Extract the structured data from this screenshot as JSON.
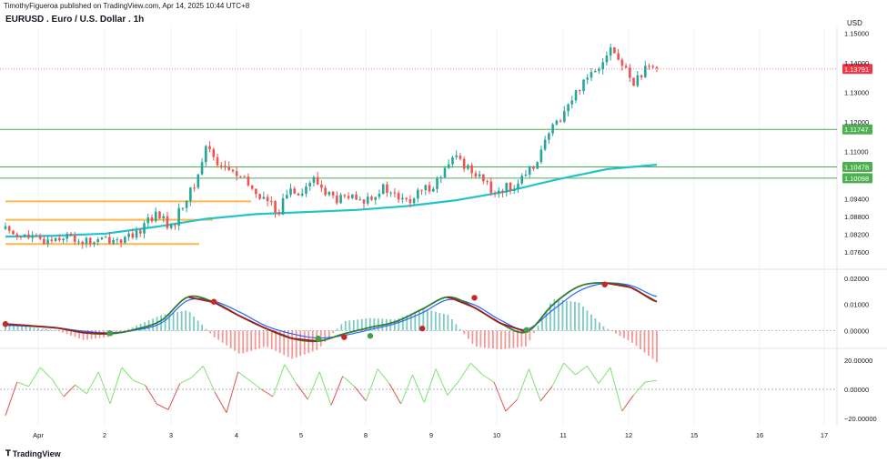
{
  "header": {
    "publisher_line": "TimothyFigueroa published on TradingView.com, Apr 14, 2025 10:44 UTC+8",
    "symbol_title": "EURUSD . Euro / U.S. Dollar . 1h",
    "currency": "USD",
    "brand": "TradingView"
  },
  "colors": {
    "up": "#26a69a",
    "down": "#ef5350",
    "ma": "#22c3c9",
    "hline": "#4caf50",
    "support": "#ffb74d",
    "last_price": "#f23645",
    "macd_fast": "#2e7d32",
    "macd_signal": "#2962ff",
    "osc_up": "#7ee36f",
    "osc_down": "#e05050"
  },
  "chart_data": [
    {
      "type": "candlestick",
      "title": "EURUSD . Euro / U.S. Dollar . 1h",
      "y_unit": "USD",
      "ylim": [
        1.072,
        1.152
      ],
      "x_ticks": [
        "Apr",
        "2",
        "3",
        "4",
        "5",
        "8",
        "9",
        "10",
        "11",
        "12",
        "15",
        "16",
        "17"
      ],
      "y_ticks": [
        "1.15000",
        "1.14000",
        "1.13000",
        "1.12000",
        "1.11000",
        "1.09400",
        "1.08800",
        "1.08200",
        "1.07600"
      ],
      "last_price": {
        "value": 1.13791,
        "label": "1.13791"
      },
      "horizontal_levels": [
        {
          "value": 1.11747,
          "label": "1.11747"
        },
        {
          "value": 1.10478,
          "label": "1.10478"
        },
        {
          "value": 1.10098,
          "label": "1.10098"
        }
      ],
      "support_levels": [
        1.0931,
        1.0869,
        1.0787
      ],
      "close_path": [
        1.0838,
        1.0822,
        1.0808,
        1.0795,
        1.0808,
        1.0815,
        1.0802,
        1.0792,
        1.0798,
        1.0805,
        1.0802,
        1.0812,
        1.0875,
        1.0885,
        1.0835,
        1.0925,
        1.0985,
        1.1125,
        1.1058,
        1.1035,
        1.1005,
        1.0965,
        1.0935,
        1.0895,
        1.0975,
        1.0965,
        1.1005,
        1.0965,
        1.0935,
        1.0945,
        1.0925,
        1.0955,
        1.0975,
        1.0945,
        1.0925,
        1.0962,
        1.0985,
        1.1025,
        1.1085,
        1.1045,
        1.1025,
        1.0962,
        1.0975,
        1.0985,
        1.1015,
        1.1085,
        1.1165,
        1.1225,
        1.1285,
        1.1355,
        1.1385,
        1.1455,
        1.1395,
        1.1335,
        1.1372,
        1.1379
      ],
      "moving_average": [
        1.0812,
        1.0815,
        1.0822,
        1.0845,
        1.0872,
        1.0888,
        1.0895,
        1.0902,
        1.0915,
        1.0935,
        1.0965,
        1.1005,
        1.104,
        1.1055
      ]
    },
    {
      "type": "line",
      "name": "MACD",
      "ylim": [
        -0.004,
        0.022
      ],
      "y_ticks": [
        "0.02000",
        "0.01000",
        "0.00000"
      ],
      "series": [
        {
          "values": [
            0.0025,
            0.0018,
            0.001,
            -0.0008,
            -0.0012,
            0.0005,
            0.004,
            0.0128,
            0.0108,
            0.0055,
            0.0008,
            -0.003,
            -0.004,
            -0.0012,
            0.0012,
            0.0035,
            0.0082,
            0.0128,
            0.0088,
            0.0028,
            -0.0005,
            0.0098,
            0.0168,
            0.0182,
            0.0165,
            0.011
          ]
        },
        {
          "values": [
            0.002,
            0.0016,
            0.001,
            -0.0002,
            -0.0008,
            0.0002,
            0.003,
            0.0115,
            0.0112,
            0.007,
            0.0018,
            -0.0012,
            -0.0028,
            -0.0018,
            0.0004,
            0.0028,
            0.0068,
            0.0118,
            0.0098,
            0.004,
            0.0005,
            0.0078,
            0.015,
            0.018,
            0.0172,
            0.013
          ]
        }
      ],
      "cross_markers": [
        {
          "index": 0,
          "value": 0.0025,
          "direction": "down"
        },
        {
          "index": 4,
          "value": -0.001,
          "direction": "up"
        },
        {
          "index": 8,
          "value": 0.011,
          "direction": "down"
        },
        {
          "index": 12,
          "value": -0.003,
          "direction": "up"
        },
        {
          "index": 13,
          "value": -0.0025,
          "direction": "down"
        },
        {
          "index": 14,
          "value": -0.002,
          "direction": "up"
        },
        {
          "index": 16,
          "value": 0.0008,
          "direction": "down"
        },
        {
          "index": 18,
          "value": 0.0125,
          "direction": "down"
        },
        {
          "index": 20,
          "value": 0.0002,
          "direction": "up"
        },
        {
          "index": 23,
          "value": 0.0176,
          "direction": "down"
        }
      ]
    },
    {
      "type": "line",
      "name": "Oscillator",
      "ylim": [
        -25,
        25
      ],
      "y_ticks": [
        "20.00000",
        "0.00000",
        "−20.00000"
      ],
      "values": [
        -18,
        5,
        2,
        15,
        7,
        -5,
        3,
        -3,
        12,
        -10,
        15,
        6,
        3,
        -10,
        -14,
        4,
        8,
        16,
        -2,
        -16,
        12,
        6,
        0,
        -5,
        17,
        4,
        -7,
        12,
        -11,
        9,
        2,
        -8,
        14,
        4,
        -10,
        10,
        -9,
        14,
        -4,
        6,
        18,
        10,
        5,
        -15,
        -7,
        14,
        -8,
        2,
        18,
        10,
        16,
        4,
        15,
        -15,
        -4,
        5,
        6
      ]
    }
  ]
}
